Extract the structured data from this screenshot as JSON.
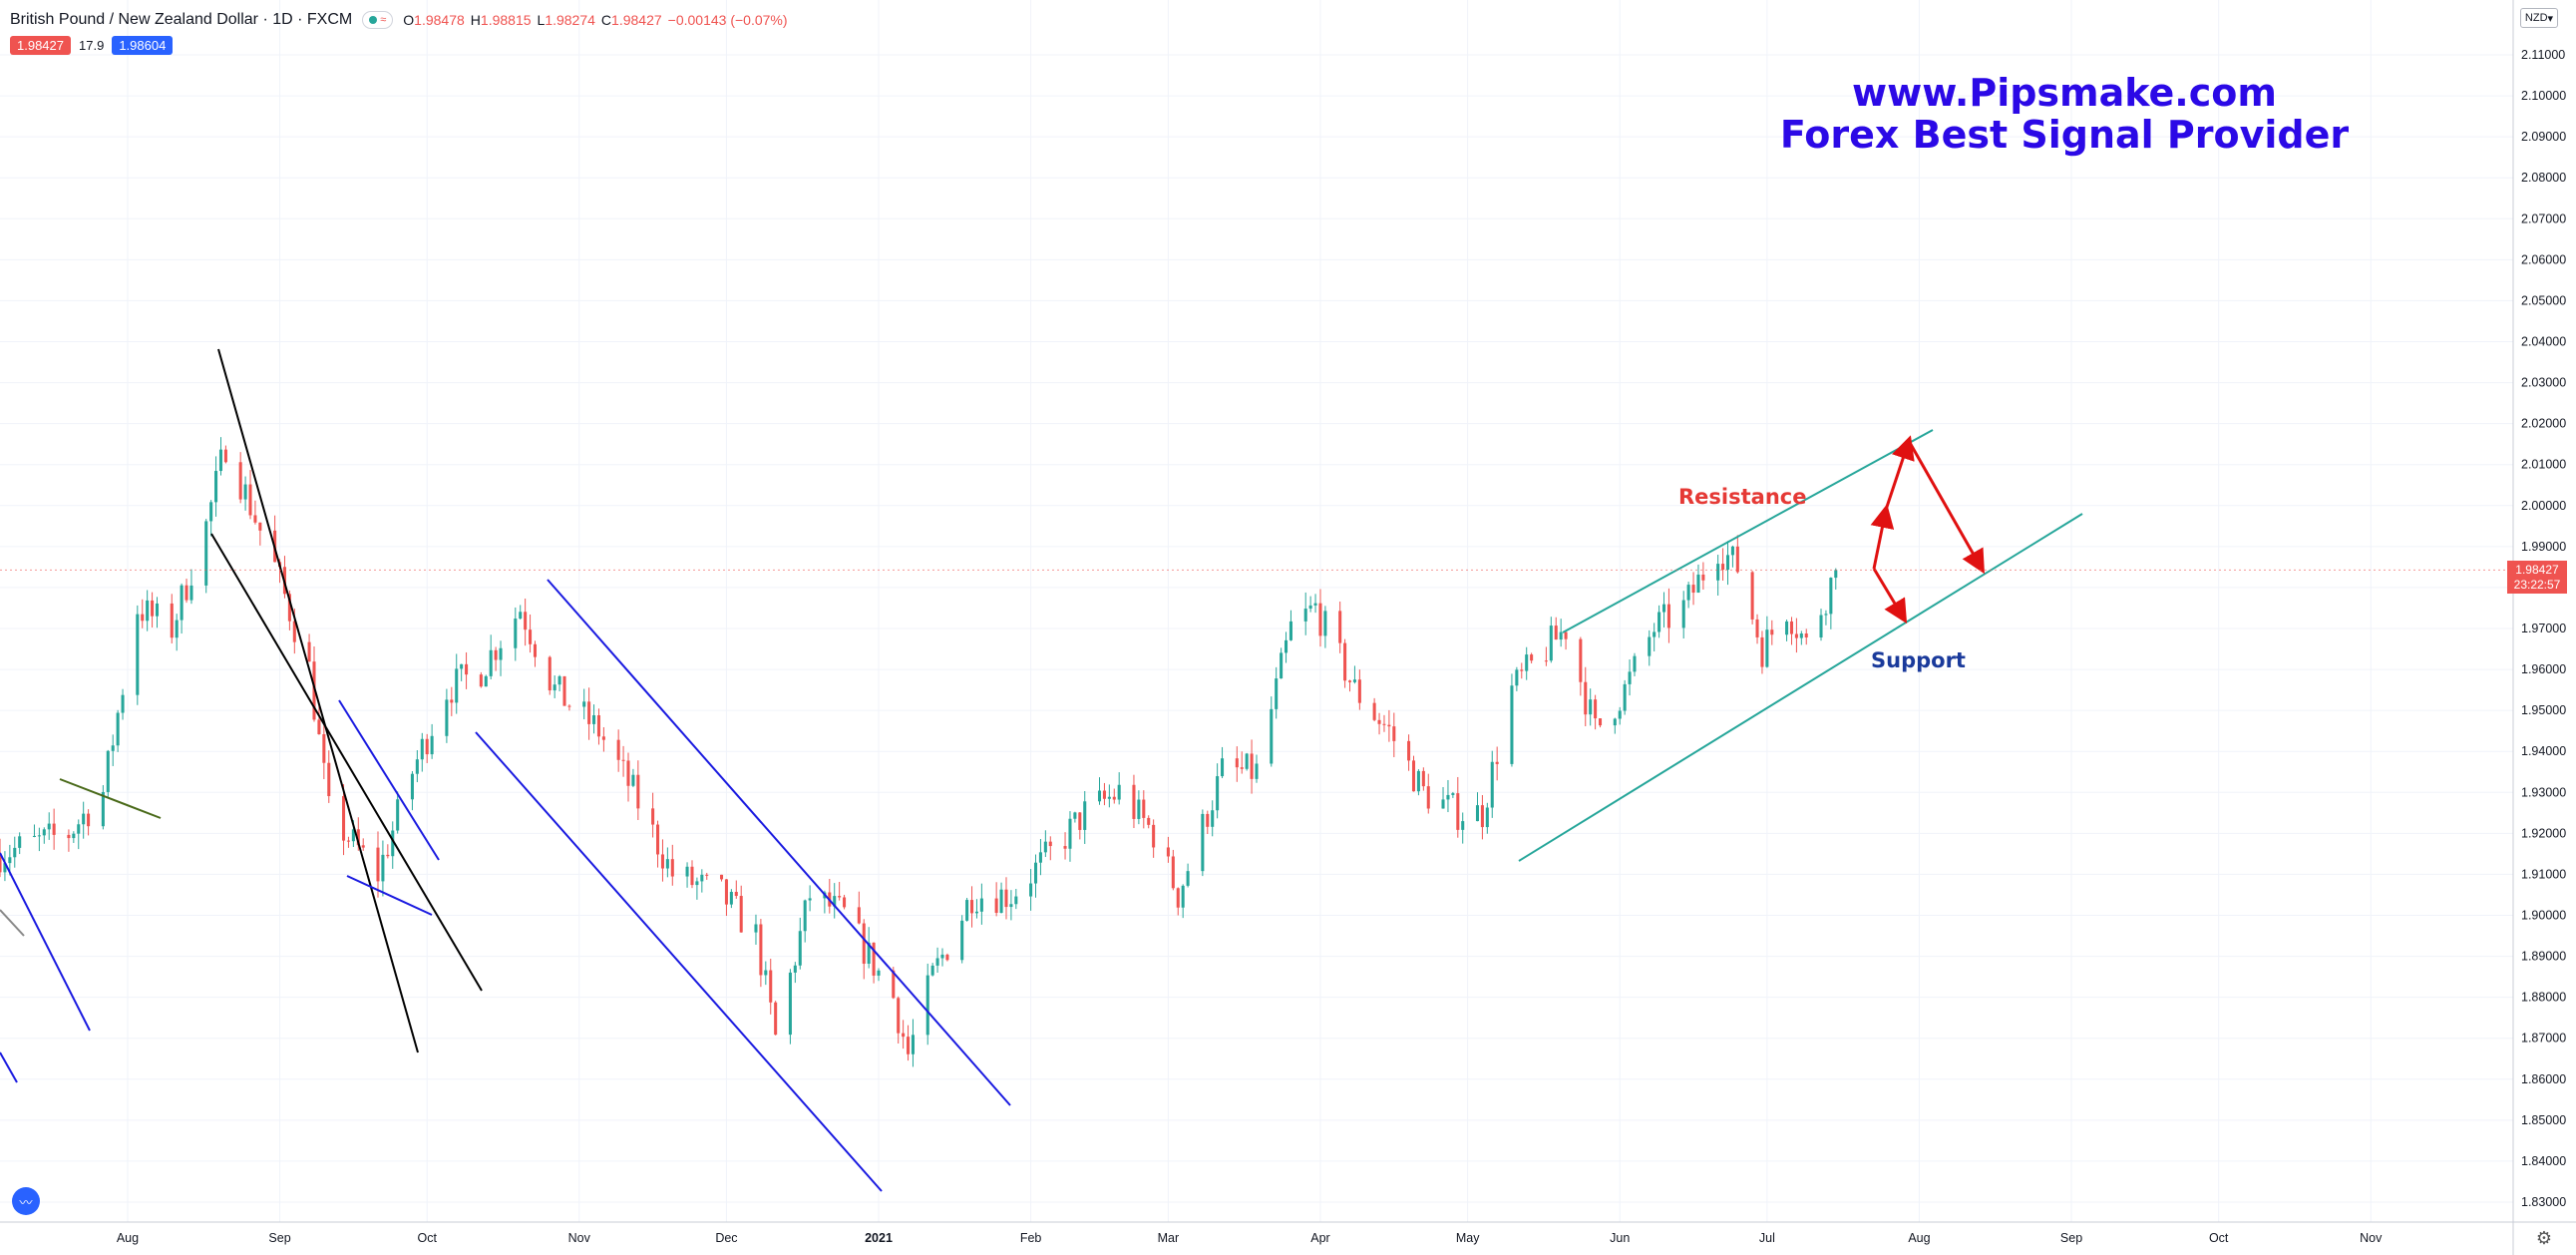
{
  "header": {
    "symbol": "British Pound / New Zealand Dollar · 1D · FXCM",
    "ohlc": [
      {
        "k": "O",
        "v": "1.98478"
      },
      {
        "k": "H",
        "v": "1.98815"
      },
      {
        "k": "L",
        "v": "1.98274"
      },
      {
        "k": "C",
        "v": "1.98427"
      },
      {
        "k": "",
        "v": "−0.00143 (−0.07%)"
      }
    ],
    "bid": "1.98427",
    "spread": "17.9",
    "ask": "1.98604"
  },
  "watermark": {
    "line1": "www.Pipsmake.com",
    "line2": "Forex Best Signal Provider"
  },
  "annotations": {
    "resistance": "Resistance",
    "support": "Support"
  },
  "price_scale": {
    "currency": "NZD",
    "last_price": "1.98427",
    "countdown": "23:22:57"
  },
  "colors": {
    "up": "#26a69a",
    "down": "#ef5350",
    "channel": "#26a69a",
    "trend_blue": "#1a1ae0",
    "trend_black": "#000000",
    "arrow": "#e01010",
    "watermark": "#2b09e6"
  },
  "chart_data": {
    "type": "candlestick",
    "title": "British Pound / New Zealand Dollar · 1D · FXCM",
    "ylim": [
      1.825,
      2.12
    ],
    "y_ticks": [
      "1.83000",
      "1.84000",
      "1.85000",
      "1.86000",
      "1.87000",
      "1.88000",
      "1.89000",
      "1.90000",
      "1.91000",
      "1.92000",
      "1.93000",
      "1.94000",
      "1.95000",
      "1.96000",
      "1.97000",
      "1.98000",
      "1.99000",
      "2.00000",
      "2.01000",
      "2.02000",
      "2.03000",
      "2.04000",
      "2.05000",
      "2.06000",
      "2.07000",
      "2.08000",
      "2.09000",
      "2.10000",
      "2.11000"
    ],
    "x_ticks": [
      "Aug",
      "Sep",
      "Oct",
      "Nov",
      "Dec",
      "2021",
      "Feb",
      "Mar",
      "Apr",
      "May",
      "Jun",
      "Jul",
      "Aug",
      "Sep",
      "Oct",
      "Nov"
    ],
    "x_range": [
      "2020-07-06",
      "2021-11-30"
    ],
    "x_tick_dates": [
      "2020-08-01",
      "2020-09-01",
      "2020-10-01",
      "2020-11-01",
      "2020-12-01",
      "2021-01-01",
      "2021-02-01",
      "2021-03-01",
      "2021-04-01",
      "2021-05-01",
      "2021-06-01",
      "2021-07-01",
      "2021-08-01",
      "2021-09-01",
      "2021-10-01",
      "2021-11-01"
    ],
    "close_anchors": [
      [
        "2020-07-06",
        1.915
      ],
      [
        "2020-07-20",
        1.92
      ],
      [
        "2020-07-27",
        1.93
      ],
      [
        "2020-08-03",
        1.975
      ],
      [
        "2020-08-10",
        1.97
      ],
      [
        "2020-08-17",
        1.995
      ],
      [
        "2020-08-21",
        2.015
      ],
      [
        "2020-08-31",
        1.985
      ],
      [
        "2020-09-07",
        1.96
      ],
      [
        "2020-09-11",
        1.925
      ],
      [
        "2020-09-21",
        1.91
      ],
      [
        "2020-09-28",
        1.935
      ],
      [
        "2020-10-05",
        1.955
      ],
      [
        "2020-10-12",
        1.96
      ],
      [
        "2020-10-20",
        1.975
      ],
      [
        "2020-10-27",
        1.955
      ],
      [
        "2020-11-05",
        1.945
      ],
      [
        "2020-11-12",
        1.93
      ],
      [
        "2020-11-20",
        1.91
      ],
      [
        "2020-11-30",
        1.905
      ],
      [
        "2020-12-07",
        1.895
      ],
      [
        "2020-12-11",
        1.87
      ],
      [
        "2020-12-18",
        1.905
      ],
      [
        "2020-12-25",
        1.9
      ],
      [
        "2021-01-04",
        1.88
      ],
      [
        "2021-01-07",
        1.866
      ],
      [
        "2021-01-12",
        1.885
      ],
      [
        "2021-01-20",
        1.905
      ],
      [
        "2021-01-28",
        1.905
      ],
      [
        "2021-02-05",
        1.915
      ],
      [
        "2021-02-12",
        1.925
      ],
      [
        "2021-02-19",
        1.93
      ],
      [
        "2021-02-26",
        1.92
      ],
      [
        "2021-03-03",
        1.905
      ],
      [
        "2021-03-12",
        1.935
      ],
      [
        "2021-03-19",
        1.935
      ],
      [
        "2021-03-26",
        1.97
      ],
      [
        "2021-03-31",
        1.975
      ],
      [
        "2021-04-08",
        1.955
      ],
      [
        "2021-04-15",
        1.945
      ],
      [
        "2021-04-22",
        1.93
      ],
      [
        "2021-04-29",
        1.925
      ],
      [
        "2021-05-04",
        1.925
      ],
      [
        "2021-05-10",
        1.955
      ],
      [
        "2021-05-17",
        1.965
      ],
      [
        "2021-05-21",
        1.97
      ],
      [
        "2021-05-27",
        1.945
      ],
      [
        "2021-06-02",
        1.955
      ],
      [
        "2021-06-08",
        1.97
      ],
      [
        "2021-06-14",
        1.975
      ],
      [
        "2021-06-21",
        1.99
      ],
      [
        "2021-06-25",
        1.985
      ],
      [
        "2021-06-30",
        1.965
      ],
      [
        "2021-07-05",
        1.975
      ],
      [
        "2021-07-09",
        1.966
      ],
      [
        "2021-07-15",
        1.984
      ]
    ],
    "last_close": 1.98427
  }
}
